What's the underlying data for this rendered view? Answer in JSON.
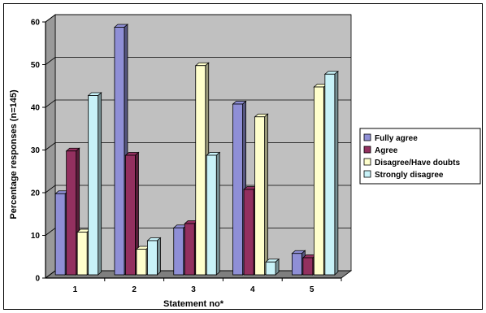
{
  "chart_data": {
    "type": "bar",
    "title": "",
    "xlabel": "Statement no*",
    "ylabel": "Percentage responses (n=145)",
    "categories": [
      "1",
      "2",
      "3",
      "4",
      "5"
    ],
    "ylim": [
      0,
      60
    ],
    "yticks": [
      "0",
      "10",
      "20",
      "30",
      "40",
      "50",
      "60"
    ],
    "grid": true,
    "legend_position": "right",
    "series": [
      {
        "name": "Fully agree",
        "color": "#8f8fd6",
        "values": [
          19,
          58,
          11,
          40,
          5
        ]
      },
      {
        "name": "Agree",
        "color": "#93305f",
        "values": [
          29,
          28,
          12,
          20,
          4
        ]
      },
      {
        "name": "Disagree/Have doubts",
        "color": "#ffffcc",
        "values": [
          10,
          6,
          49,
          37,
          44
        ]
      },
      {
        "name": "Strongly disagree",
        "color": "#c8f2f8",
        "values": [
          42,
          8,
          28,
          3,
          47
        ]
      }
    ]
  }
}
